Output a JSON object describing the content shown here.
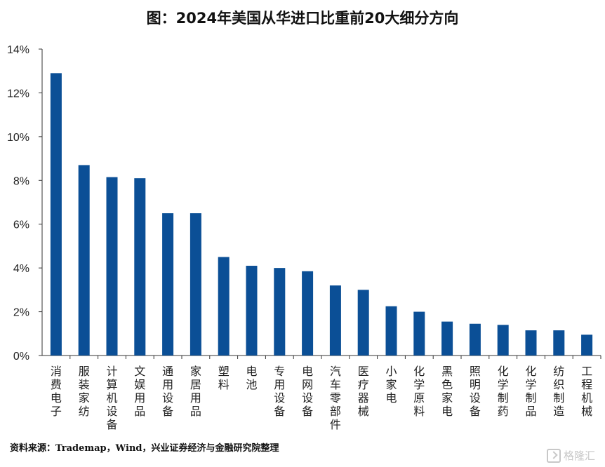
{
  "title": "图：2024年美国从华进口比重前20大细分方向",
  "source": "资料来源：Trademap，Wind，兴业证券经济与金融研究院整理",
  "watermark": "格隆汇",
  "colors": {
    "bar": "#0b4f96",
    "axis": "#333333",
    "text": "#222222"
  },
  "chart_data": {
    "type": "bar",
    "title": "图：2024年美国从华进口比重前20大细分方向",
    "xlabel": "",
    "ylabel": "",
    "ylim": [
      0,
      14
    ],
    "yticks": [
      "0%",
      "2%",
      "4%",
      "6%",
      "8%",
      "10%",
      "12%",
      "14%"
    ],
    "grid": false,
    "categories": [
      "消费电子",
      "服装家纺",
      "计算机设备",
      "文娱用品",
      "通用设备",
      "家居用品",
      "塑料",
      "电池",
      "专用设备",
      "电网设备",
      "汽车零部件",
      "医疗器械",
      "小家电",
      "化学原料",
      "黑色家电",
      "照明设备",
      "化学制药",
      "化学制品",
      "纺织制造",
      "工程机械"
    ],
    "values": [
      12.9,
      8.7,
      8.15,
      8.1,
      6.5,
      6.5,
      4.5,
      4.1,
      4.0,
      3.85,
      3.2,
      3.0,
      2.25,
      2.0,
      1.55,
      1.45,
      1.4,
      1.15,
      1.15,
      0.95
    ]
  }
}
